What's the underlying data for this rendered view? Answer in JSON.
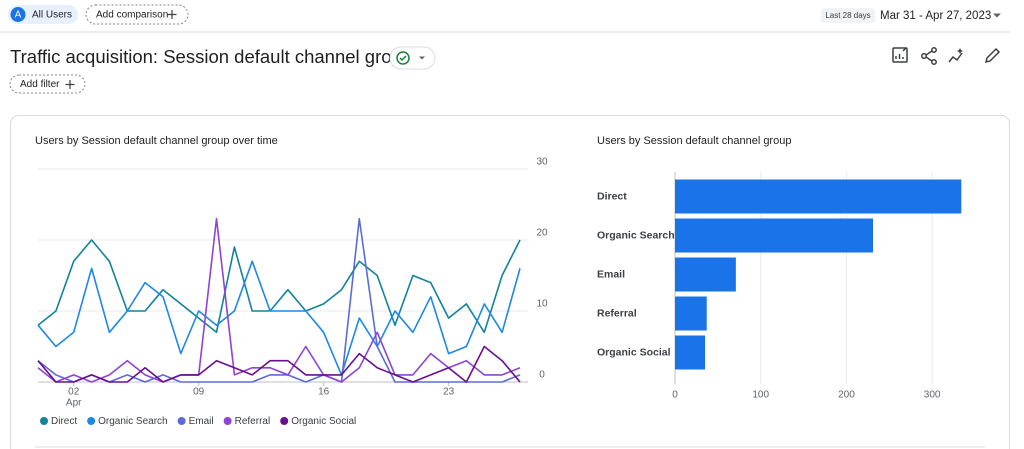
{
  "header": {
    "segment_initial": "A",
    "segment": "All Users",
    "add_comparison": "Add comparison",
    "date_range_label": "Last 28 days",
    "date_range": "Mar 31 - Apr 27, 2023"
  },
  "report": {
    "title": "Traffic acquisition: Session default channel group",
    "add_filter": "Add filter"
  },
  "chart_data": [
    {
      "type": "line",
      "title": "Users by Session default channel group over time",
      "categories": [
        null,
        null,
        "02",
        null,
        null,
        null,
        null,
        null,
        null,
        "09",
        null,
        null,
        null,
        null,
        null,
        null,
        "16",
        null,
        null,
        null,
        null,
        null,
        null,
        "23",
        null,
        null,
        null,
        null
      ],
      "month_label": "Apr",
      "series": [
        {
          "name": "Direct",
          "color": "#12839a",
          "values": [
            8,
            10,
            17,
            20,
            17,
            10,
            10,
            13,
            11,
            9,
            7,
            19,
            10,
            10,
            13,
            10,
            11,
            13,
            17,
            15,
            8,
            15,
            14,
            9,
            11,
            7,
            15,
            20
          ]
        },
        {
          "name": "Organic Search",
          "color": "#1e88e5",
          "values": [
            8,
            5,
            7,
            16,
            7,
            10,
            14,
            12,
            4,
            10,
            8,
            10,
            17,
            10,
            10,
            10,
            7,
            1,
            9,
            5,
            10,
            7,
            12,
            4,
            5,
            11,
            7,
            16
          ]
        },
        {
          "name": "Email",
          "color": "#5c6bd6",
          "values": [
            3,
            1,
            0,
            1,
            0,
            1,
            0,
            1,
            0,
            0,
            0,
            0,
            0,
            1,
            1,
            0,
            1,
            0,
            23,
            5,
            0,
            0,
            0,
            0,
            0,
            0,
            0,
            1
          ]
        },
        {
          "name": "Referral",
          "color": "#8e44d0",
          "values": [
            2,
            0,
            1,
            0,
            1,
            3,
            1,
            0,
            1,
            1,
            23,
            1,
            2,
            2,
            1,
            5,
            1,
            0,
            2,
            7,
            1,
            1,
            4,
            2,
            3,
            1,
            1,
            2
          ]
        },
        {
          "name": "Organic Social",
          "color": "#6a0f8e",
          "values": [
            3,
            0,
            0,
            1,
            0,
            0,
            2,
            0,
            1,
            1,
            3,
            2,
            1,
            3,
            3,
            1,
            1,
            1,
            4,
            2,
            1,
            0,
            1,
            2,
            0,
            5,
            3,
            0
          ]
        }
      ],
      "ylim": [
        0,
        30
      ],
      "yticks": [
        0,
        10,
        20,
        30
      ],
      "grid": true,
      "legend": "bottom"
    },
    {
      "type": "bar",
      "orientation": "horizontal",
      "title": "Users by Session default channel group",
      "categories": [
        "Direct",
        "Organic Search",
        "Email",
        "Referral",
        "Organic Social"
      ],
      "values": [
        334,
        231,
        71,
        37,
        35
      ],
      "color": "#1a73e8",
      "xlim": [
        0,
        350
      ],
      "xticks": [
        0,
        100,
        200,
        300
      ],
      "grid": true
    }
  ]
}
